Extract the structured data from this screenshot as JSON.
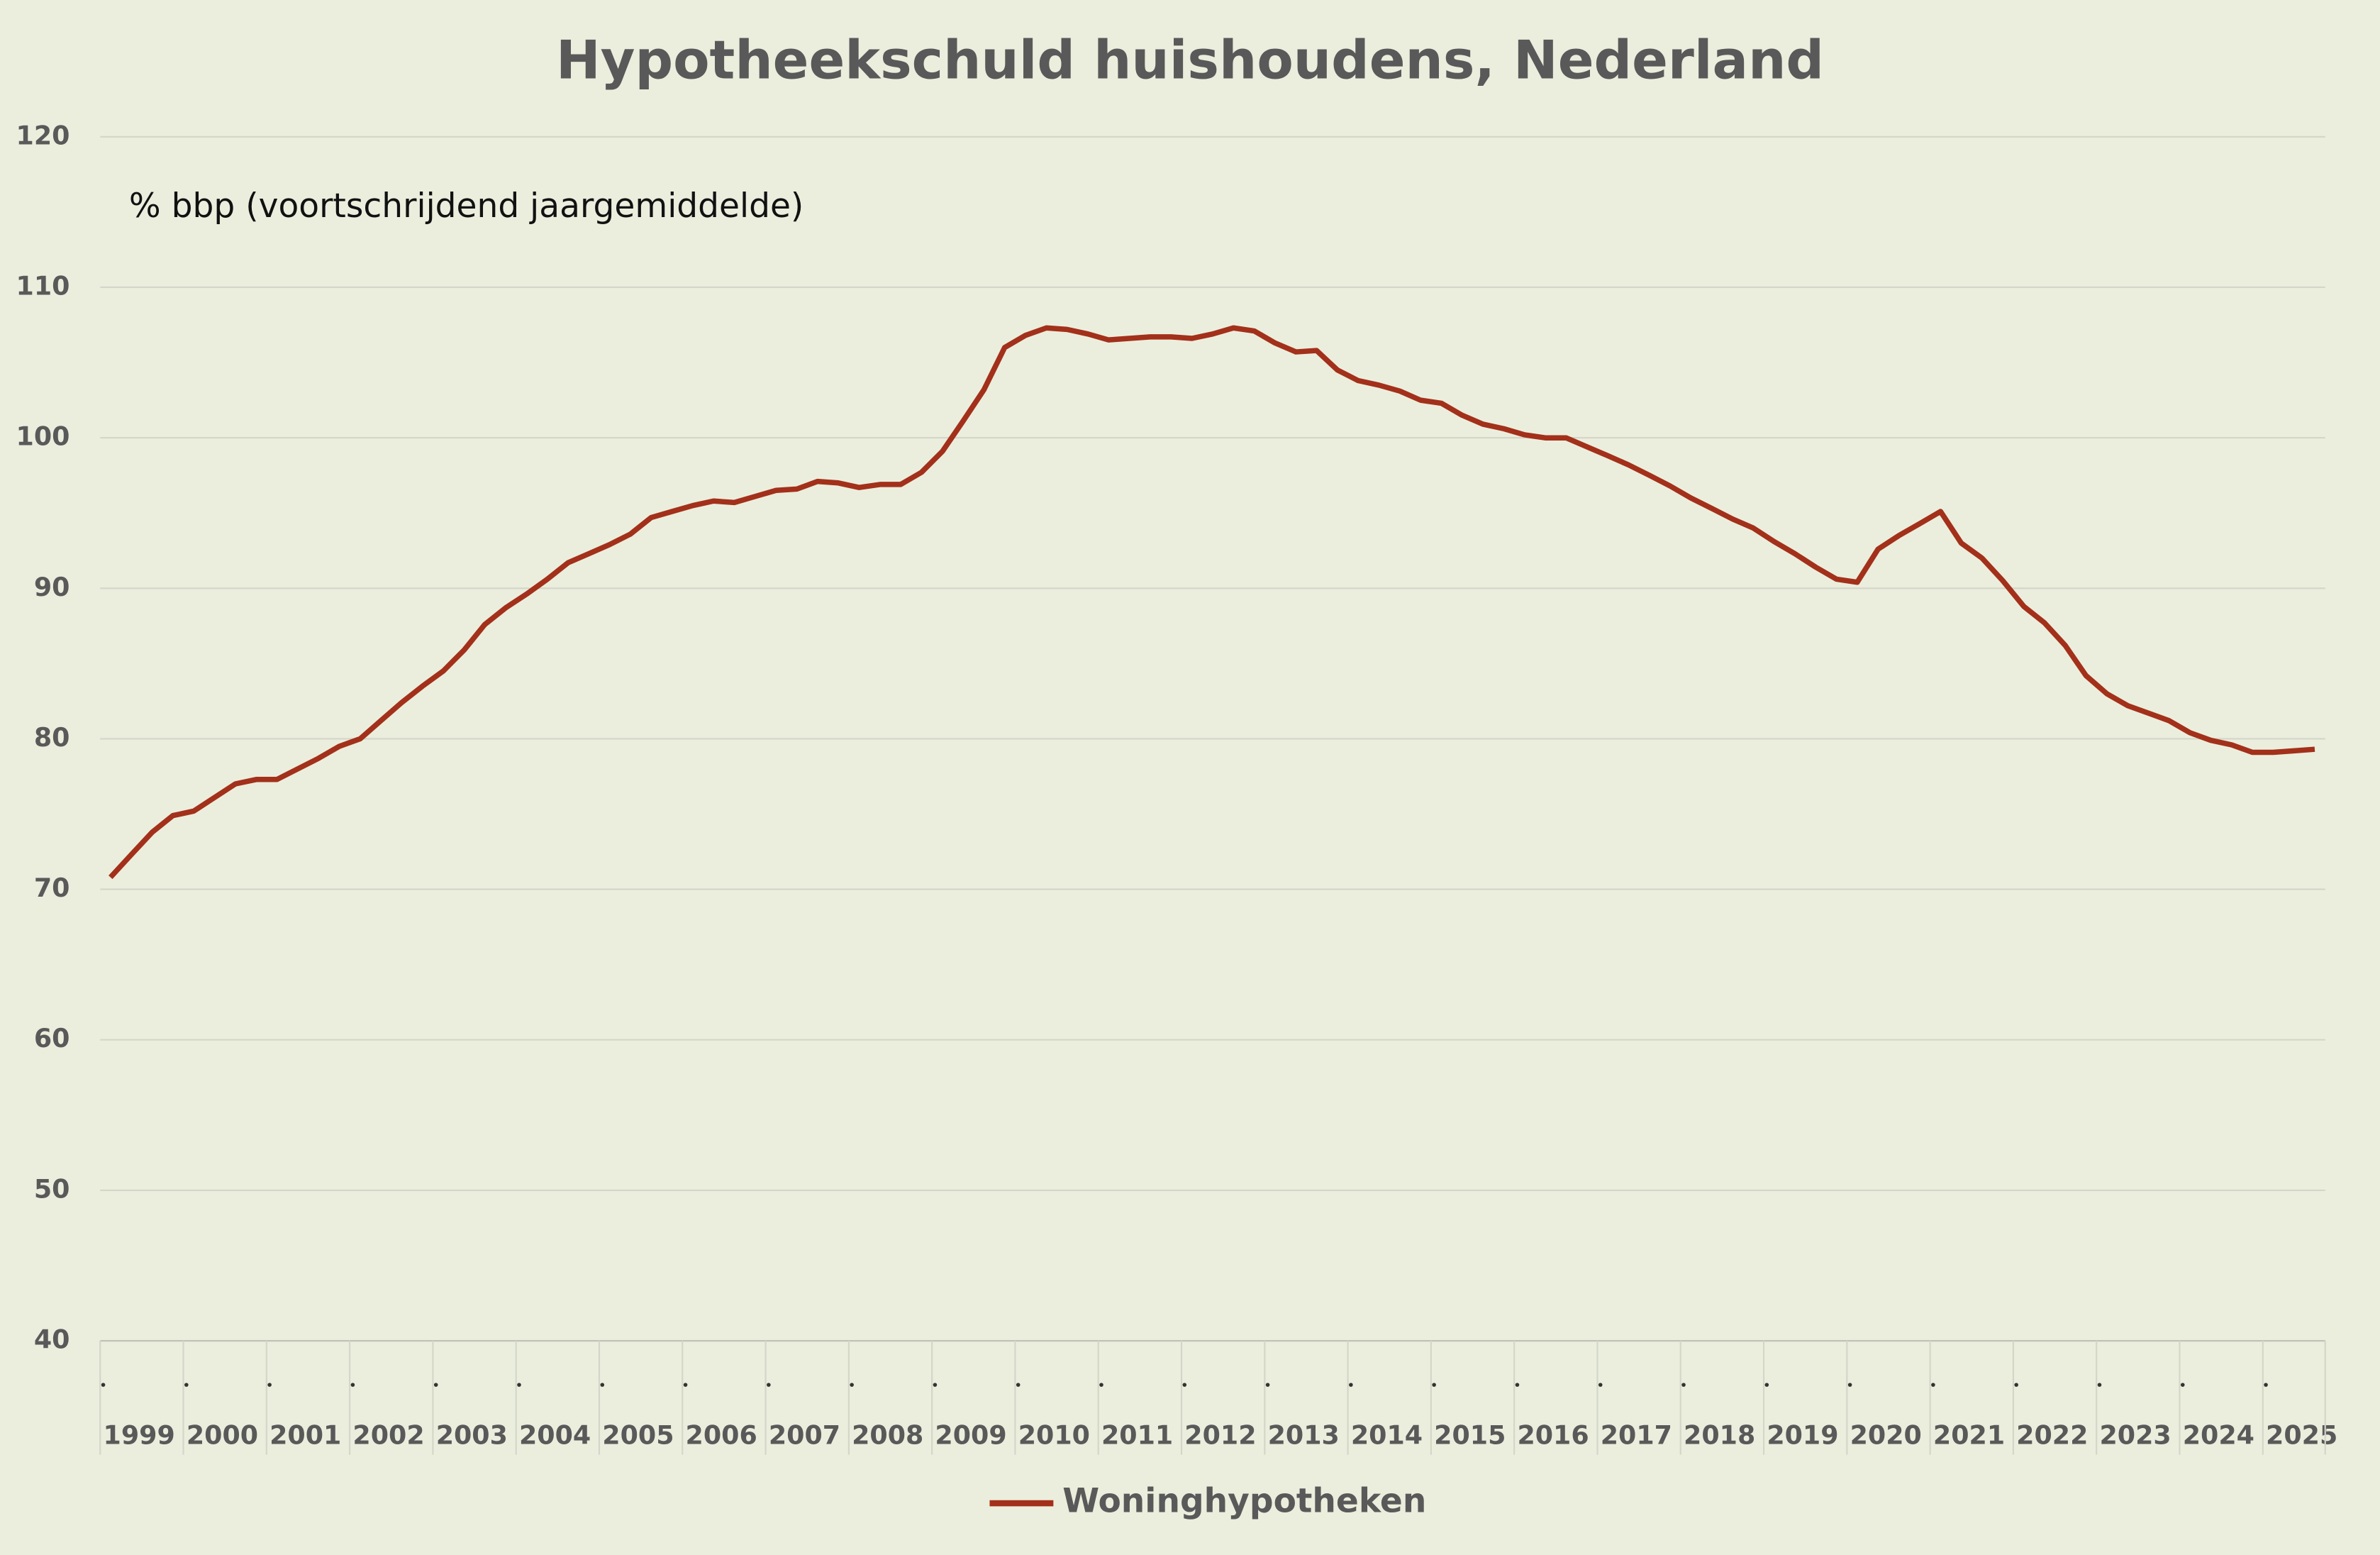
{
  "chart_data": {
    "type": "line",
    "title": "Hypotheekschuld huishoudens, Nederland",
    "annotation": "% bbp (voortschrijdend jaargemiddelde)",
    "categories": [
      "1999",
      null,
      null,
      null,
      "2000",
      null,
      null,
      null,
      "2001",
      null,
      null,
      null,
      "2002",
      null,
      null,
      null,
      "2003",
      null,
      null,
      null,
      "2004",
      null,
      null,
      null,
      "2005",
      null,
      null,
      null,
      "2006",
      null,
      null,
      null,
      "2007",
      null,
      null,
      null,
      "2008",
      null,
      null,
      null,
      "2009",
      null,
      null,
      null,
      "2010",
      null,
      null,
      null,
      "2011",
      null,
      null,
      null,
      "2012",
      null,
      null,
      null,
      "2013",
      null,
      null,
      null,
      "2014",
      null,
      null,
      null,
      "2015",
      null,
      null,
      null,
      "2016",
      null,
      null,
      null,
      "2017",
      null,
      null,
      null,
      "2018",
      null,
      null,
      null,
      "2019",
      null,
      null,
      null,
      "2020",
      null,
      null,
      null,
      "2021",
      null,
      null,
      null,
      "2022",
      null,
      null,
      null,
      "2023",
      null,
      null,
      null,
      "2024",
      null,
      null,
      null,
      "2025",
      null,
      null
    ],
    "series": [
      {
        "name": "Woninghypotheken",
        "color": "#a3301a",
        "values": [
          70.8,
          72.3,
          73.8,
          74.9,
          75.2,
          76.1,
          77.0,
          77.3,
          77.3,
          78.0,
          78.7,
          79.5,
          80.0,
          81.2,
          82.4,
          83.5,
          84.5,
          85.9,
          87.6,
          88.7,
          89.6,
          90.6,
          91.7,
          92.3,
          92.9,
          93.6,
          94.7,
          95.1,
          95.5,
          95.8,
          95.7,
          96.1,
          96.5,
          96.6,
          97.1,
          97.0,
          96.7,
          96.9,
          96.9,
          97.7,
          99.1,
          101.1,
          103.2,
          106.0,
          106.8,
          107.3,
          107.2,
          106.9,
          106.5,
          106.6,
          106.7,
          106.7,
          106.6,
          106.9,
          107.3,
          107.1,
          106.3,
          105.7,
          105.8,
          104.5,
          103.8,
          103.5,
          103.1,
          102.5,
          102.3,
          101.5,
          100.9,
          100.6,
          100.2,
          100.0,
          100.0,
          99.4,
          98.8,
          98.2,
          97.5,
          96.8,
          96.0,
          95.3,
          94.6,
          94.0,
          93.1,
          92.3,
          91.4,
          90.6,
          90.4,
          92.6,
          93.5,
          94.3,
          95.1,
          93.0,
          92.0,
          90.5,
          88.8,
          87.7,
          86.2,
          84.2,
          83.0,
          82.2,
          81.7,
          81.2,
          80.4,
          79.9,
          79.6,
          79.1,
          79.1,
          79.2,
          79.3
        ]
      }
    ],
    "ylim": [
      40,
      120
    ],
    "yticks": [
      40,
      50,
      60,
      70,
      80,
      90,
      100,
      110,
      120
    ],
    "grid": true,
    "legend": "bottom"
  }
}
